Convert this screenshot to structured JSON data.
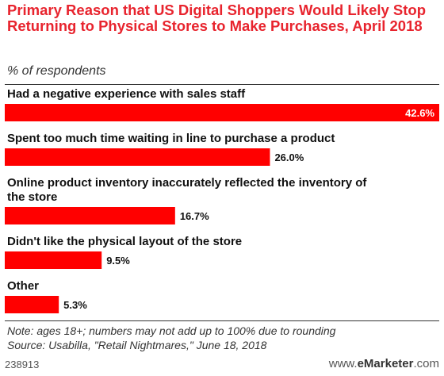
{
  "header": {
    "title": "Primary Reason that US Digital Shoppers Would Likely Stop Returning to Physical Stores to Make Purchases, April 2018",
    "subtitle": "% of respondents"
  },
  "chart_data": {
    "type": "bar",
    "orientation": "horizontal",
    "title": "Primary Reason that US Digital Shoppers Would Likely Stop Returning to Physical Stores to Make Purchases, April 2018",
    "subtitle": "% of respondents",
    "categories": [
      [
        "Had a negative experience with sales staff"
      ],
      [
        "Spent too much time waiting in line to purchase a product"
      ],
      [
        "Online product inventory inaccurately reflected the inventory of",
        "the store"
      ],
      [
        "Didn't like the physical layout of the store"
      ],
      [
        "Other"
      ]
    ],
    "values": [
      42.6,
      26.0,
      16.7,
      9.5,
      5.3
    ],
    "value_labels": [
      "42.6%",
      "26.0%",
      "16.7%",
      "9.5%",
      "5.3%"
    ],
    "xlim": [
      0,
      42.6
    ],
    "bar_color": "#ff0000",
    "grid": false
  },
  "footer": {
    "note": "Note: ages 18+; numbers may not add up to 100% due to rounding",
    "source": "Source: Usabilla, \"Retail Nightmares,\" June 18, 2018",
    "chart_id": "238913",
    "brand_prefix": "www.",
    "brand_name": "eMarketer",
    "brand_suffix": ".com"
  }
}
